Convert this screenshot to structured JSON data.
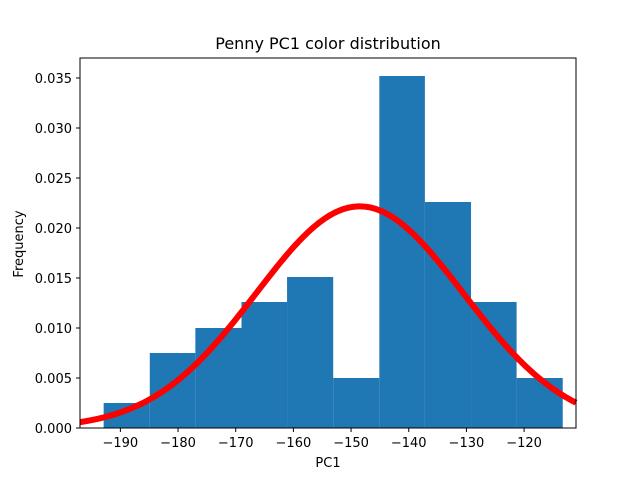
{
  "chart_data": {
    "type": "bar",
    "title": "Penny PC1 color distribution",
    "xlabel": "PC1",
    "ylabel": "Frequency",
    "xlim": [
      -197,
      -111
    ],
    "ylim": [
      0,
      0.037
    ],
    "x_ticks": [
      -190,
      -180,
      -170,
      -160,
      -150,
      -140,
      -130,
      -120
    ],
    "x_tick_labels": [
      "−190",
      "−180",
      "−170",
      "−160",
      "−150",
      "−140",
      "−130",
      "−120"
    ],
    "y_ticks": [
      0,
      0.005,
      0.01,
      0.015,
      0.02,
      0.025,
      0.03,
      0.035
    ],
    "y_tick_labels": [
      "0.000",
      "0.005",
      "0.010",
      "0.015",
      "0.020",
      "0.025",
      "0.030",
      "0.035"
    ],
    "bin_edges": [
      -192.9,
      -184.9,
      -177.0,
      -169.0,
      -161.1,
      -153.1,
      -145.1,
      -137.2,
      -129.2,
      -121.3,
      -113.3
    ],
    "values": [
      0.0025,
      0.0075,
      0.01,
      0.0126,
      0.0151,
      0.005,
      0.0352,
      0.0226,
      0.0126,
      0.005
    ],
    "bar_color": "#1f77b4",
    "curve": {
      "type": "normal_pdf",
      "mean": -148.5,
      "std": 18.0,
      "color": "#ff0000"
    },
    "grid": false,
    "legend": "none"
  }
}
